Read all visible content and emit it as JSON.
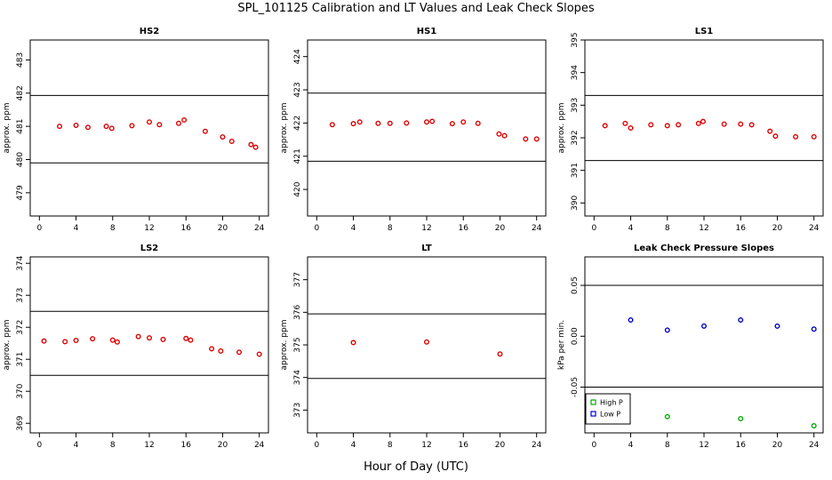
{
  "page": {
    "title": "SPL_101125  Calibration and LT Values and Leak Check Slopes",
    "xlabel": "Hour of Day (UTC)"
  },
  "chart_data": [
    {
      "type": "scatter",
      "title": "HS2",
      "ylabel": "approx. ppm",
      "xlim": [
        -1,
        25
      ],
      "ylim": [
        478.3,
        483.6
      ],
      "xticks": [
        0,
        4,
        8,
        12,
        16,
        20,
        24
      ],
      "xtick_labels": [
        "0",
        "4",
        "8",
        "12",
        "16",
        "20",
        "24"
      ],
      "yticks": [
        479,
        480,
        481,
        482,
        483
      ],
      "ytick_labels": [
        "479",
        "480",
        "481",
        "482",
        "483"
      ],
      "hlines": [
        481.93,
        479.9
      ],
      "series": [
        {
          "color": "#dd0000",
          "x": [
            2.2,
            4.0,
            5.3,
            7.3,
            7.9,
            10.1,
            12.0,
            13.1,
            15.2,
            15.8,
            18.1,
            20.0,
            21.0,
            23.1,
            23.6
          ],
          "y": [
            481.0,
            481.03,
            480.97,
            481.0,
            480.94,
            481.02,
            481.13,
            481.05,
            481.09,
            481.19,
            480.85,
            480.68,
            480.55,
            480.45,
            480.37
          ]
        }
      ]
    },
    {
      "type": "scatter",
      "title": "HS1",
      "ylabel": "approx. ppm",
      "xlim": [
        -1,
        25
      ],
      "ylim": [
        419.2,
        424.5
      ],
      "xticks": [
        0,
        4,
        8,
        12,
        16,
        20,
        24
      ],
      "xtick_labels": [
        "0",
        "4",
        "8",
        "12",
        "16",
        "20",
        "24"
      ],
      "yticks": [
        420,
        421,
        422,
        423,
        424
      ],
      "ytick_labels": [
        "420",
        "421",
        "422",
        "423",
        "424"
      ],
      "hlines": [
        422.9,
        420.85
      ],
      "series": [
        {
          "color": "#dd0000",
          "x": [
            1.7,
            4.0,
            4.7,
            6.7,
            8.0,
            9.8,
            12.0,
            12.6,
            14.8,
            16.0,
            17.6,
            19.9,
            20.5,
            22.8,
            24.0
          ],
          "y": [
            421.95,
            421.98,
            422.03,
            421.99,
            421.99,
            422.0,
            422.03,
            422.05,
            421.98,
            422.03,
            421.99,
            421.67,
            421.62,
            421.52,
            421.52
          ]
        }
      ]
    },
    {
      "type": "scatter",
      "title": "LS1",
      "ylabel": "approx. ppm",
      "xlim": [
        -1,
        25
      ],
      "ylim": [
        389.6,
        395.0
      ],
      "xticks": [
        0,
        4,
        8,
        12,
        16,
        20,
        24
      ],
      "xtick_labels": [
        "0",
        "4",
        "8",
        "12",
        "16",
        "20",
        "24"
      ],
      "yticks": [
        390,
        391,
        392,
        393,
        394,
        395
      ],
      "ytick_labels": [
        "390",
        "391",
        "392",
        "393",
        "394",
        "395"
      ],
      "hlines": [
        393.3,
        391.3
      ],
      "series": [
        {
          "color": "#dd0000",
          "x": [
            1.2,
            3.4,
            4.0,
            6.2,
            8.0,
            9.2,
            11.4,
            11.9,
            14.2,
            16.0,
            17.2,
            19.2,
            19.8,
            22.0,
            24.0
          ],
          "y": [
            392.37,
            392.44,
            392.3,
            392.4,
            392.37,
            392.4,
            392.44,
            392.5,
            392.42,
            392.42,
            392.4,
            392.2,
            392.05,
            392.03,
            392.03
          ]
        }
      ]
    },
    {
      "type": "scatter",
      "title": "LS2",
      "ylabel": "approx. ppm",
      "xlim": [
        -1,
        25
      ],
      "ylim": [
        368.7,
        374.2
      ],
      "xticks": [
        0,
        4,
        8,
        12,
        16,
        20,
        24
      ],
      "xtick_labels": [
        "0",
        "4",
        "8",
        "12",
        "16",
        "20",
        "24"
      ],
      "yticks": [
        369,
        370,
        371,
        372,
        373,
        374
      ],
      "ytick_labels": [
        "369",
        "370",
        "371",
        "372",
        "373",
        "374"
      ],
      "hlines": [
        372.5,
        370.5
      ],
      "series": [
        {
          "color": "#dd0000",
          "x": [
            0.5,
            2.8,
            4.0,
            5.8,
            8.0,
            8.5,
            10.8,
            12.0,
            13.5,
            16.0,
            16.5,
            18.8,
            19.8,
            21.8,
            24.0
          ],
          "y": [
            371.57,
            371.55,
            371.59,
            371.64,
            371.6,
            371.54,
            371.71,
            371.67,
            371.62,
            371.65,
            371.6,
            371.33,
            371.26,
            371.22,
            371.16
          ]
        }
      ]
    },
    {
      "type": "scatter",
      "title": "LT",
      "ylabel": "approx. ppm",
      "xlim": [
        -1,
        25
      ],
      "ylim": [
        372.3,
        377.7
      ],
      "xticks": [
        0,
        4,
        8,
        12,
        16,
        20,
        24
      ],
      "xtick_labels": [
        "0",
        "4",
        "8",
        "12",
        "16",
        "20",
        "24"
      ],
      "yticks": [
        373,
        374,
        375,
        376,
        377
      ],
      "ytick_labels": [
        "373",
        "374",
        "375",
        "376",
        "377"
      ],
      "hlines": [
        375.95,
        373.97
      ],
      "series": [
        {
          "color": "#dd0000",
          "x": [
            4.0,
            12.0,
            20.0
          ],
          "y": [
            375.07,
            375.09,
            374.72
          ]
        }
      ]
    },
    {
      "type": "scatter",
      "title": "Leak Check Pressure Slopes",
      "ylabel": "kPa per min.",
      "xlim": [
        -1,
        25
      ],
      "ylim": [
        -0.095,
        0.078
      ],
      "xticks": [
        0,
        4,
        8,
        12,
        16,
        20,
        24
      ],
      "xtick_labels": [
        "0",
        "4",
        "8",
        "12",
        "16",
        "20",
        "24"
      ],
      "yticks": [
        -0.05,
        0.0,
        0.05
      ],
      "ytick_labels": [
        "-0.05",
        "0.00",
        "0.05"
      ],
      "hlines": [
        0.05,
        -0.05
      ],
      "legend": {
        "position": "bottom-left"
      },
      "series": [
        {
          "name": "High P",
          "color": "#00aa00",
          "x": [
            8.0,
            16.0,
            24.0
          ],
          "y": [
            -0.079,
            -0.081,
            -0.088
          ]
        },
        {
          "name": "Low P",
          "color": "#0000cc",
          "x": [
            4.0,
            8.0,
            12.0,
            16.0,
            20.0,
            24.0
          ],
          "y": [
            0.016,
            0.006,
            0.01,
            0.016,
            0.01,
            0.007
          ]
        }
      ]
    }
  ]
}
